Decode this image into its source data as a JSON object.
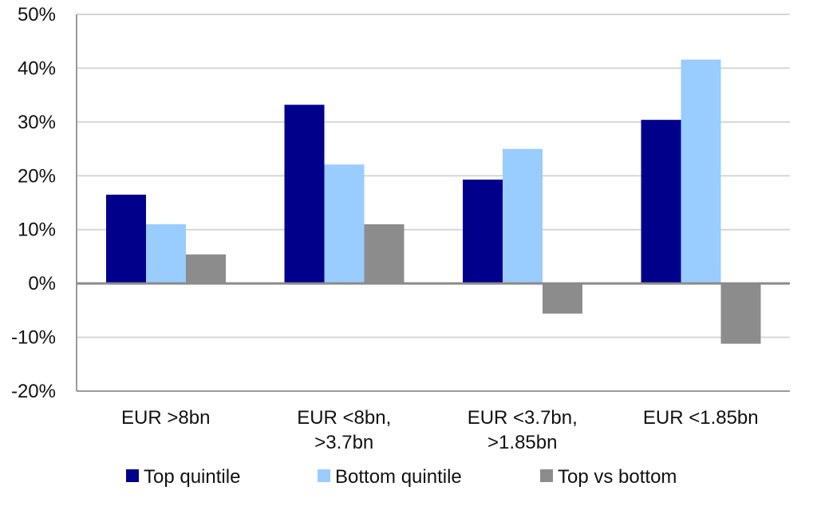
{
  "chart_data": {
    "type": "bar",
    "title": "",
    "xlabel": "",
    "ylabel": "",
    "ylim": [
      -20,
      50
    ],
    "y_ticks": [
      "50%",
      "40%",
      "30%",
      "20%",
      "10%",
      "0%",
      "-10%",
      "-20%"
    ],
    "y_tick_values": [
      50,
      40,
      30,
      20,
      10,
      0,
      -10,
      -20
    ],
    "grid": true,
    "legend_position": "bottom",
    "categories": [
      [
        "EUR >8bn"
      ],
      [
        "EUR <8bn,",
        ">3.7bn"
      ],
      [
        "EUR <3.7bn,",
        ">1.85bn"
      ],
      [
        "EUR <1.85bn"
      ]
    ],
    "series": [
      {
        "name": "Top quintile",
        "color": "#00008b",
        "values": [
          16.5,
          33.2,
          19.3,
          30.4
        ]
      },
      {
        "name": "Bottom quintile",
        "color": "#99ccff",
        "values": [
          11.0,
          22.1,
          25.0,
          41.6
        ]
      },
      {
        "name": "Top vs bottom",
        "color": "#8c8c8c",
        "values": [
          5.4,
          11.0,
          -5.6,
          -11.2
        ]
      }
    ]
  }
}
